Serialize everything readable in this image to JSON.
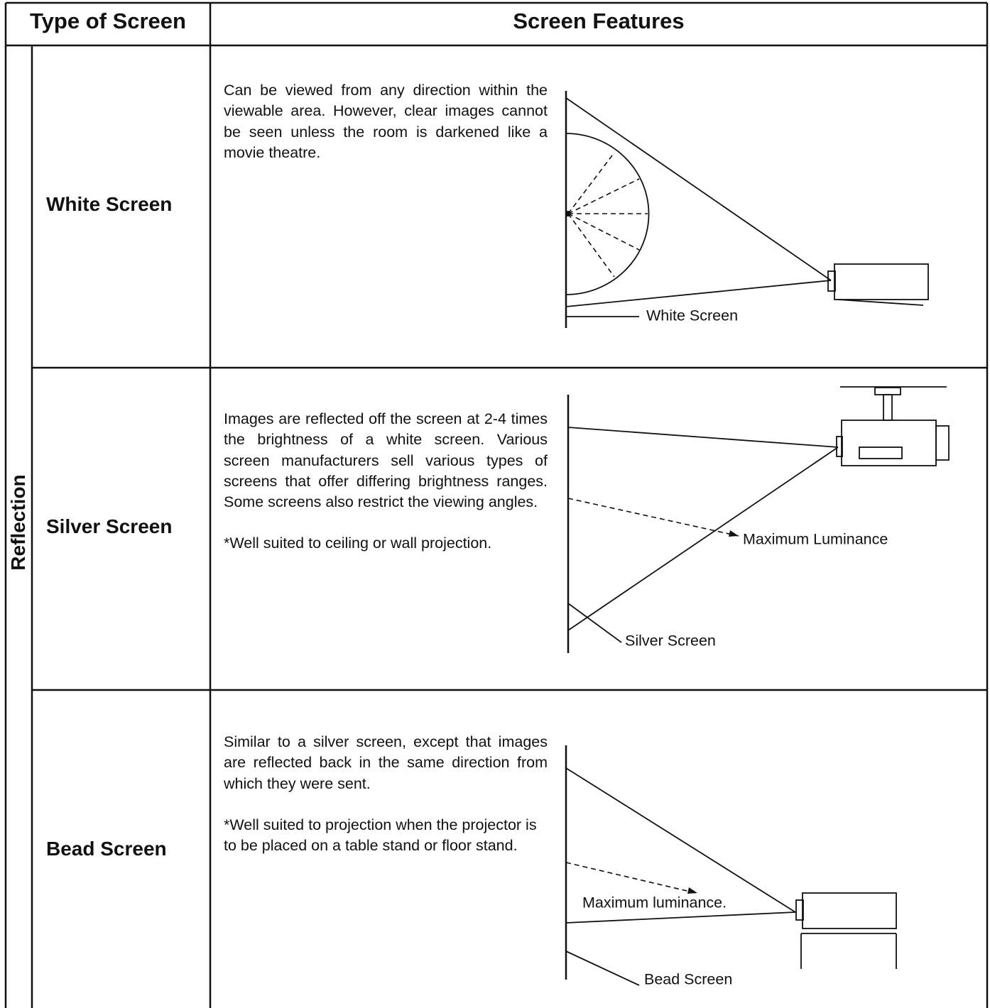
{
  "table": {
    "headers": [
      "Type of Screen",
      "Screen Features"
    ],
    "group": "Reflection",
    "rows": [
      {
        "name": "White Screen",
        "text": [
          "Can be viewed from any direction within the viewable area. However, clear images cannot be seen unless the room is darkened like a movie theatre."
        ],
        "labels": [
          "White Screen"
        ]
      },
      {
        "name": "Silver Screen",
        "text": [
          "Images are reflected off the screen at 2-4 times the brightness of a white screen. Various screen manufacturers sell various types of screens that offer differing brightness ranges. Some screens also restrict the viewing angles.",
          "*Well suited to ceiling or wall projection."
        ],
        "labels": [
          "Maximum Luminance",
          "Silver Screen"
        ]
      },
      {
        "name": "Bead Screen",
        "text": [
          "Similar to a silver screen, except that images are reflected back in the same direction from which they were sent.",
          "*Well suited to projection when the projector is to be placed on a table stand or floor stand."
        ],
        "labels": [
          "Maximum luminance.",
          "Bead Screen"
        ]
      }
    ]
  }
}
